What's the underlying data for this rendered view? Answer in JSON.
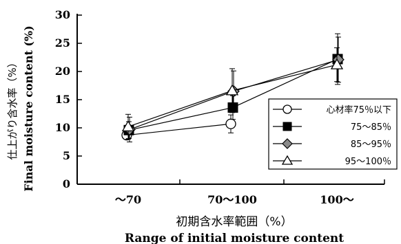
{
  "chart_data": {
    "type": "line",
    "categories": [
      "～70",
      "70～100",
      "100～"
    ],
    "xlabel_jp": "初期含水率範囲（%）",
    "xlabel_en": "Range of initial moisture content",
    "ylabel_jp": "仕上がり含水率（%）",
    "ylabel_en": "Final moisture content (%)",
    "ylim": [
      0,
      30
    ],
    "yticks": [
      0,
      5,
      10,
      15,
      20,
      25,
      30
    ],
    "legend_position": "right",
    "series": [
      {
        "name": "心材率75％以下",
        "marker": "circle-open",
        "values": [
          8.7,
          10.7,
          null
        ],
        "err": [
          0.6,
          1.6,
          null
        ]
      },
      {
        "name": "75～85％",
        "marker": "square-filled",
        "values": [
          9.6,
          13.6,
          22.2
        ],
        "err": [
          1.5,
          2.1,
          4.5
        ]
      },
      {
        "name": "85～95％",
        "marker": "diamond-gray",
        "values": [
          9.7,
          16.5,
          22.1
        ],
        "err": [
          2.2,
          3.6,
          4.0
        ]
      },
      {
        "name": "95～100％",
        "marker": "triangle-open",
        "values": [
          10.2,
          16.6,
          21.2
        ],
        "err": [
          2.2,
          3.9,
          3.0
        ]
      }
    ]
  }
}
